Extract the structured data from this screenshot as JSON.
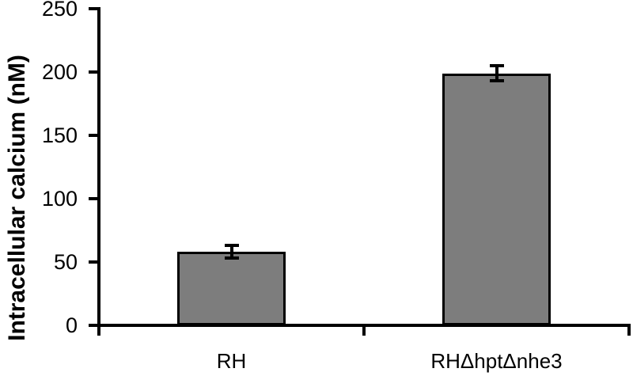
{
  "chart_data": {
    "type": "bar",
    "title": "",
    "xlabel": "",
    "ylabel": "Intracellular calcium (nM)",
    "categories": [
      "RH",
      "RHΔhptΔnhe3"
    ],
    "series": [
      {
        "name": "Intracellular calcium",
        "values": [
          58,
          199
        ],
        "errors": [
          5,
          6
        ]
      }
    ],
    "ylim": [
      0,
      250
    ],
    "yticks": [
      0,
      50,
      100,
      150,
      200,
      250
    ],
    "grid": false,
    "legend_position": "none",
    "colors": {
      "bar_fill": "#7d7d7d",
      "bar_edge": "#000000",
      "error_bar": "#000000",
      "axis": "#000000",
      "text": "#000000",
      "background": "#ffffff"
    }
  }
}
